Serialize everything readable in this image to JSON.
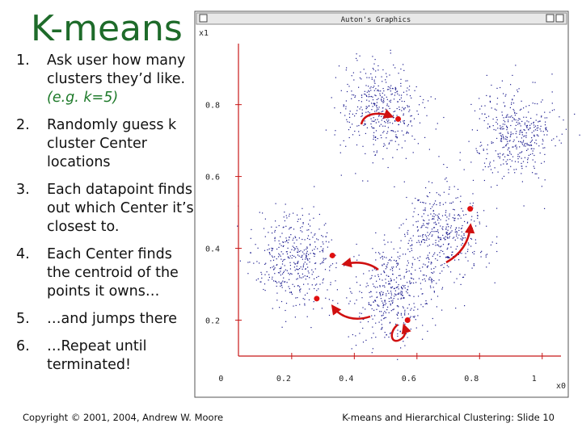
{
  "title": "K-means",
  "steps": [
    {
      "number": "1.",
      "text": "Ask user how many clusters they’d like.",
      "note": "(e.g. k=5)"
    },
    {
      "number": "2.",
      "text": "Randomly guess k cluster Center locations"
    },
    {
      "number": "3.",
      "text": "Each datapoint finds out which Center it’s closest to."
    },
    {
      "number": "4.",
      "text": "Each Center finds the centroid of the points it owns…"
    },
    {
      "number": "5.",
      "text": "…and jumps there"
    },
    {
      "number": "6.",
      "text": "…Repeat until terminated!"
    }
  ],
  "footer": {
    "left": "Copyright © 2001, 2004, Andrew W. Moore",
    "right": "K-means and Hierarchical Clustering: Slide 10"
  },
  "window": {
    "title": "Auton's Graphics"
  },
  "chart_data": {
    "type": "scatter",
    "x_label": "x0",
    "y_label": "x1",
    "xlim": [
      0.03,
      1.06
    ],
    "ylim": [
      0.1,
      0.97
    ],
    "xticks": [
      0,
      0.2,
      0.4,
      0.6,
      0.8,
      1
    ],
    "yticks": [
      0.2,
      0.4,
      0.6,
      0.8
    ],
    "axis_color": "#c81818",
    "clusters": {
      "color": "#1c1c8e",
      "x": [
        0.48,
        0.91,
        0.21,
        0.68,
        0.52
      ],
      "y": [
        0.79,
        0.72,
        0.37,
        0.44,
        0.28
      ],
      "sd": [
        0.065,
        0.065,
        0.065,
        0.065,
        0.065
      ]
    },
    "centers": {
      "color": "#e01010",
      "x": [
        0.54,
        0.77,
        0.33,
        0.28,
        0.57
      ],
      "y": [
        0.76,
        0.51,
        0.38,
        0.26,
        0.2
      ]
    }
  }
}
